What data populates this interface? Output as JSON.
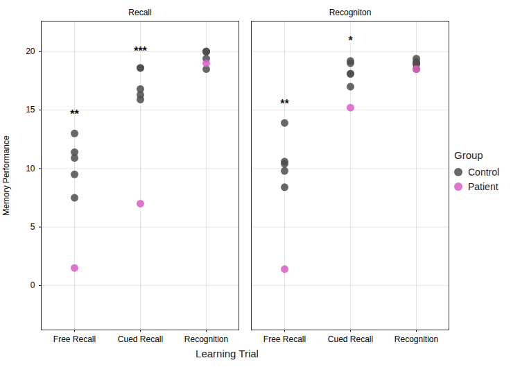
{
  "chart_data": {
    "type": "scatter",
    "x_label": "Learning Trial",
    "y_label": "Memory Performance",
    "categories": [
      "Free Recall",
      "Cued Recall",
      "Recognition"
    ],
    "ylim": [
      -3.8,
      22.6
    ],
    "yticks": [
      0,
      5,
      10,
      15,
      20
    ],
    "grid": true,
    "legend": "right",
    "legend_title": "Group",
    "facets": [
      {
        "title": "Recall",
        "series": [
          {
            "name": "Control",
            "color": "#4d4d4d",
            "values": [
              [
                13.0,
                11.4,
                10.9,
                9.5,
                7.5
              ],
              [
                18.6,
                18.6,
                16.8,
                16.3,
                15.9
              ],
              [
                20.0,
                20.0,
                20.0,
                19.4,
                18.5
              ]
            ]
          },
          {
            "name": "Patient",
            "color": "#d65fc4",
            "values": [
              [
                1.5
              ],
              [
                7.0
              ],
              [
                19.0
              ]
            ]
          }
        ],
        "annotations": [
          {
            "category": "Free Recall",
            "y": 14.6,
            "text": "**"
          },
          {
            "category": "Cued Recall",
            "y": 20.0,
            "text": "***"
          }
        ]
      },
      {
        "title": "Recogniton",
        "series": [
          {
            "name": "Control",
            "color": "#4d4d4d",
            "values": [
              [
                13.9,
                10.6,
                10.4,
                9.8,
                8.4
              ],
              [
                19.2,
                19.0,
                18.1,
                18.1,
                17.0
              ],
              [
                19.4,
                19.1,
                19.0,
                18.9,
                18.5
              ]
            ]
          },
          {
            "name": "Patient",
            "color": "#d65fc4",
            "values": [
              [
                1.4
              ],
              [
                15.2
              ],
              [
                18.5
              ]
            ]
          }
        ],
        "annotations": [
          {
            "category": "Free Recall",
            "y": 15.5,
            "text": "**"
          },
          {
            "category": "Cued Recall",
            "y": 20.9,
            "text": "*"
          }
        ]
      }
    ]
  }
}
